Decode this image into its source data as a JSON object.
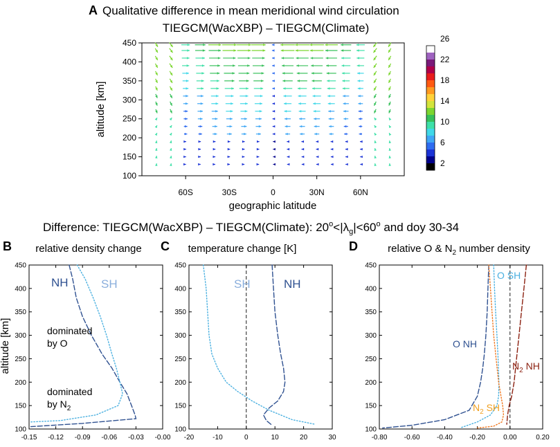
{
  "panels": {
    "a": {
      "letter": "A",
      "title_line1": "Qualitative difference in mean meridional wind circulation",
      "title_line2": "TIEGCM(WacXBP) – TIEGCM(Climate)",
      "ylabel": "altitude [km]",
      "xlabel": "geographic latitude"
    },
    "subtitle": {
      "prefix": "Difference: TIEGCM(WacXBP) – TIEGCM(Climate): 20",
      "sup1": "o",
      "mid1": "<|",
      "lambda": "λ",
      "sub_g": "g",
      "mid2": "|<60",
      "sup2": "o",
      "suffix": " and doy 30-34"
    },
    "b": {
      "letter": "B",
      "title": "relative density change",
      "ylabel": "altitude [km]"
    },
    "c": {
      "letter": "C",
      "title": "temperature change [K]"
    },
    "d": {
      "letter": "D",
      "title_prefix": "relative O & N",
      "title_sub": "2",
      "title_suffix": " number density"
    }
  },
  "chart_data": [
    {
      "id": "A",
      "type": "vector",
      "title": "Qualitative difference in mean meridional wind circulation",
      "subtitle": "TIEGCM(WacXBP) – TIEGCM(Climate)",
      "xlabel": "geographic latitude",
      "ylabel": "altitude [km]",
      "xlim": [
        -90,
        90
      ],
      "ylim": [
        100,
        450
      ],
      "xticks": [
        -60,
        -30,
        0,
        30,
        60
      ],
      "xticklabels": [
        "60S",
        "30S",
        "0",
        "30N",
        "60N"
      ],
      "yticks": [
        100,
        150,
        200,
        250,
        300,
        350,
        400,
        450
      ],
      "colorbar": {
        "labels": [
          "2",
          "6",
          "10",
          "14",
          "18",
          "22",
          "26"
        ],
        "colors": [
          "#000000",
          "#00008b",
          "#1b33d6",
          "#2e6cf0",
          "#3fa7f5",
          "#40d8e8",
          "#3ee0a8",
          "#37c05a",
          "#7cd630",
          "#d3e43c",
          "#ffd23a",
          "#ff9a20",
          "#ff5a12",
          "#e81c1c",
          "#b0004a",
          "#7a1a7a",
          "#9f63c0",
          "#ffffff"
        ]
      },
      "wind_field": {
        "latitudes": [
          -80,
          -70,
          -60,
          -50,
          -40,
          -30,
          -20,
          -10,
          0,
          10,
          20,
          30,
          40,
          50,
          60,
          70,
          80
        ],
        "altitudes": [
          130,
          150,
          170,
          190,
          210,
          230,
          250,
          270,
          290,
          310,
          330,
          350,
          370,
          390,
          410,
          430,
          445
        ],
        "description": "equatorward flow aloft in both hemispheres, weak flow below 200 km"
      }
    },
    {
      "id": "B",
      "type": "line",
      "title": "relative density change",
      "ylabel": "altitude [km]",
      "xlim": [
        -0.15,
        0.0
      ],
      "ylim": [
        100,
        450
      ],
      "xticklabels": [
        "-0.15",
        "-0.12",
        "-0.09",
        "-0.06",
        "-0.03",
        "-0.00"
      ],
      "xticks": [
        -0.15,
        -0.12,
        -0.09,
        -0.06,
        -0.03,
        0.0
      ],
      "yticks": [
        100,
        150,
        200,
        250,
        300,
        350,
        400,
        450
      ],
      "series": [
        {
          "name": "NH",
          "style": "dashed",
          "color": "#2e5090",
          "x": [
            -0.105,
            -0.101,
            -0.097,
            -0.09,
            -0.08,
            -0.068,
            -0.057,
            -0.048,
            -0.04,
            -0.035,
            -0.031,
            -0.03,
            -0.09,
            -0.148
          ],
          "y": [
            450,
            420,
            380,
            340,
            300,
            260,
            230,
            200,
            175,
            150,
            130,
            122,
            112,
            105
          ]
        },
        {
          "name": "SH",
          "style": "dotted",
          "color": "#4ab0e0",
          "x": [
            -0.096,
            -0.087,
            -0.078,
            -0.07,
            -0.063,
            -0.057,
            -0.052,
            -0.048,
            -0.045,
            -0.05,
            -0.075,
            -0.115,
            -0.148
          ],
          "y": [
            450,
            420,
            380,
            340,
            300,
            260,
            230,
            200,
            175,
            150,
            130,
            118,
            115
          ]
        }
      ],
      "annotations": [
        {
          "text": "NH",
          "color": "#2e5090"
        },
        {
          "text": "SH",
          "color": "#8aaedc"
        },
        {
          "text": "dominated"
        },
        {
          "text": "by O"
        },
        {
          "text": "dominated"
        },
        {
          "text": "by N",
          "sub": "2"
        }
      ]
    },
    {
      "id": "C",
      "type": "line",
      "title": "temperature change [K]",
      "xlim": [
        -20,
        30
      ],
      "ylim": [
        100,
        450
      ],
      "xticks": [
        -20,
        -10,
        0,
        10,
        20,
        30
      ],
      "xticklabels": [
        "-20",
        "-10",
        "0",
        "10",
        "20",
        "30"
      ],
      "yticks": [
        100,
        150,
        200,
        250,
        300,
        350,
        400,
        450
      ],
      "series": [
        {
          "name": "NH",
          "style": "dashed",
          "color": "#2e5090",
          "x": [
            9,
            9.5,
            10,
            11,
            12,
            13,
            13.5,
            13,
            11,
            8,
            6,
            7,
            9
          ],
          "y": [
            450,
            400,
            350,
            300,
            260,
            230,
            200,
            180,
            160,
            145,
            130,
            118,
            108
          ]
        },
        {
          "name": "SH",
          "style": "dotted",
          "color": "#4ab0e0",
          "x": [
            -15,
            -14,
            -13.5,
            -13,
            -12,
            -10,
            -7,
            -3,
            2,
            8,
            16,
            24
          ],
          "y": [
            450,
            400,
            350,
            300,
            260,
            230,
            200,
            180,
            160,
            140,
            120,
            110
          ]
        }
      ],
      "annotations": [
        {
          "text": "SH",
          "color": "#8aaedc"
        },
        {
          "text": "NH",
          "color": "#2e5090"
        }
      ]
    },
    {
      "id": "D",
      "type": "line",
      "title": "relative O & N2 number density",
      "xlim": [
        -0.8,
        0.2
      ],
      "ylim": [
        100,
        450
      ],
      "xticks": [
        -0.8,
        -0.6,
        -0.4,
        -0.2,
        0.0,
        0.2
      ],
      "xticklabels": [
        "-0.80",
        "-0.60",
        "-0.40",
        "-0.20",
        "0.00",
        "0.20"
      ],
      "yticks": [
        100,
        150,
        200,
        250,
        300,
        350,
        400,
        450
      ],
      "series": [
        {
          "name": "O NH",
          "style": "dashed",
          "color": "#2e5090",
          "x": [
            -0.13,
            -0.135,
            -0.14,
            -0.148,
            -0.157,
            -0.167,
            -0.18,
            -0.2,
            -0.25,
            -0.4,
            -0.6,
            -0.78
          ],
          "y": [
            450,
            400,
            350,
            300,
            260,
            230,
            200,
            170,
            140,
            120,
            108,
            102
          ]
        },
        {
          "name": "O SH",
          "style": "dotted",
          "color": "#4ab0e0",
          "x": [
            -0.1,
            -0.095,
            -0.088,
            -0.08,
            -0.073,
            -0.068,
            -0.07,
            -0.08,
            -0.12,
            -0.2,
            -0.3
          ],
          "y": [
            450,
            400,
            350,
            300,
            250,
            200,
            170,
            150,
            130,
            115,
            103
          ]
        },
        {
          "name": "N2 SH",
          "style": "dotted",
          "color": "#f07820",
          "x": [
            -0.13,
            -0.12,
            -0.11,
            -0.1,
            -0.085,
            -0.07,
            -0.055,
            -0.045,
            -0.04,
            -0.05,
            -0.1,
            -0.2
          ],
          "y": [
            450,
            400,
            350,
            300,
            250,
            200,
            170,
            150,
            130,
            115,
            106,
            102
          ]
        },
        {
          "name": "N2 NH",
          "style": "dashed",
          "color": "#8b2010",
          "x": [
            0.1,
            0.085,
            0.07,
            0.055,
            0.04,
            0.025,
            0.01,
            -0.005,
            -0.015,
            -0.02
          ],
          "y": [
            450,
            400,
            350,
            300,
            250,
            200,
            170,
            150,
            130,
            110
          ]
        }
      ],
      "vline_x": 0.0,
      "annotations": [
        {
          "text": "O SH",
          "color": "#4ab0e0"
        },
        {
          "text": "O NH",
          "color": "#2e5090"
        },
        {
          "text": "N",
          "sub": "2",
          "suffix": " NH",
          "color": "#8b2010"
        },
        {
          "text": "N",
          "sub": "2",
          "suffix": " SH",
          "color": "#f0a020"
        }
      ]
    }
  ]
}
